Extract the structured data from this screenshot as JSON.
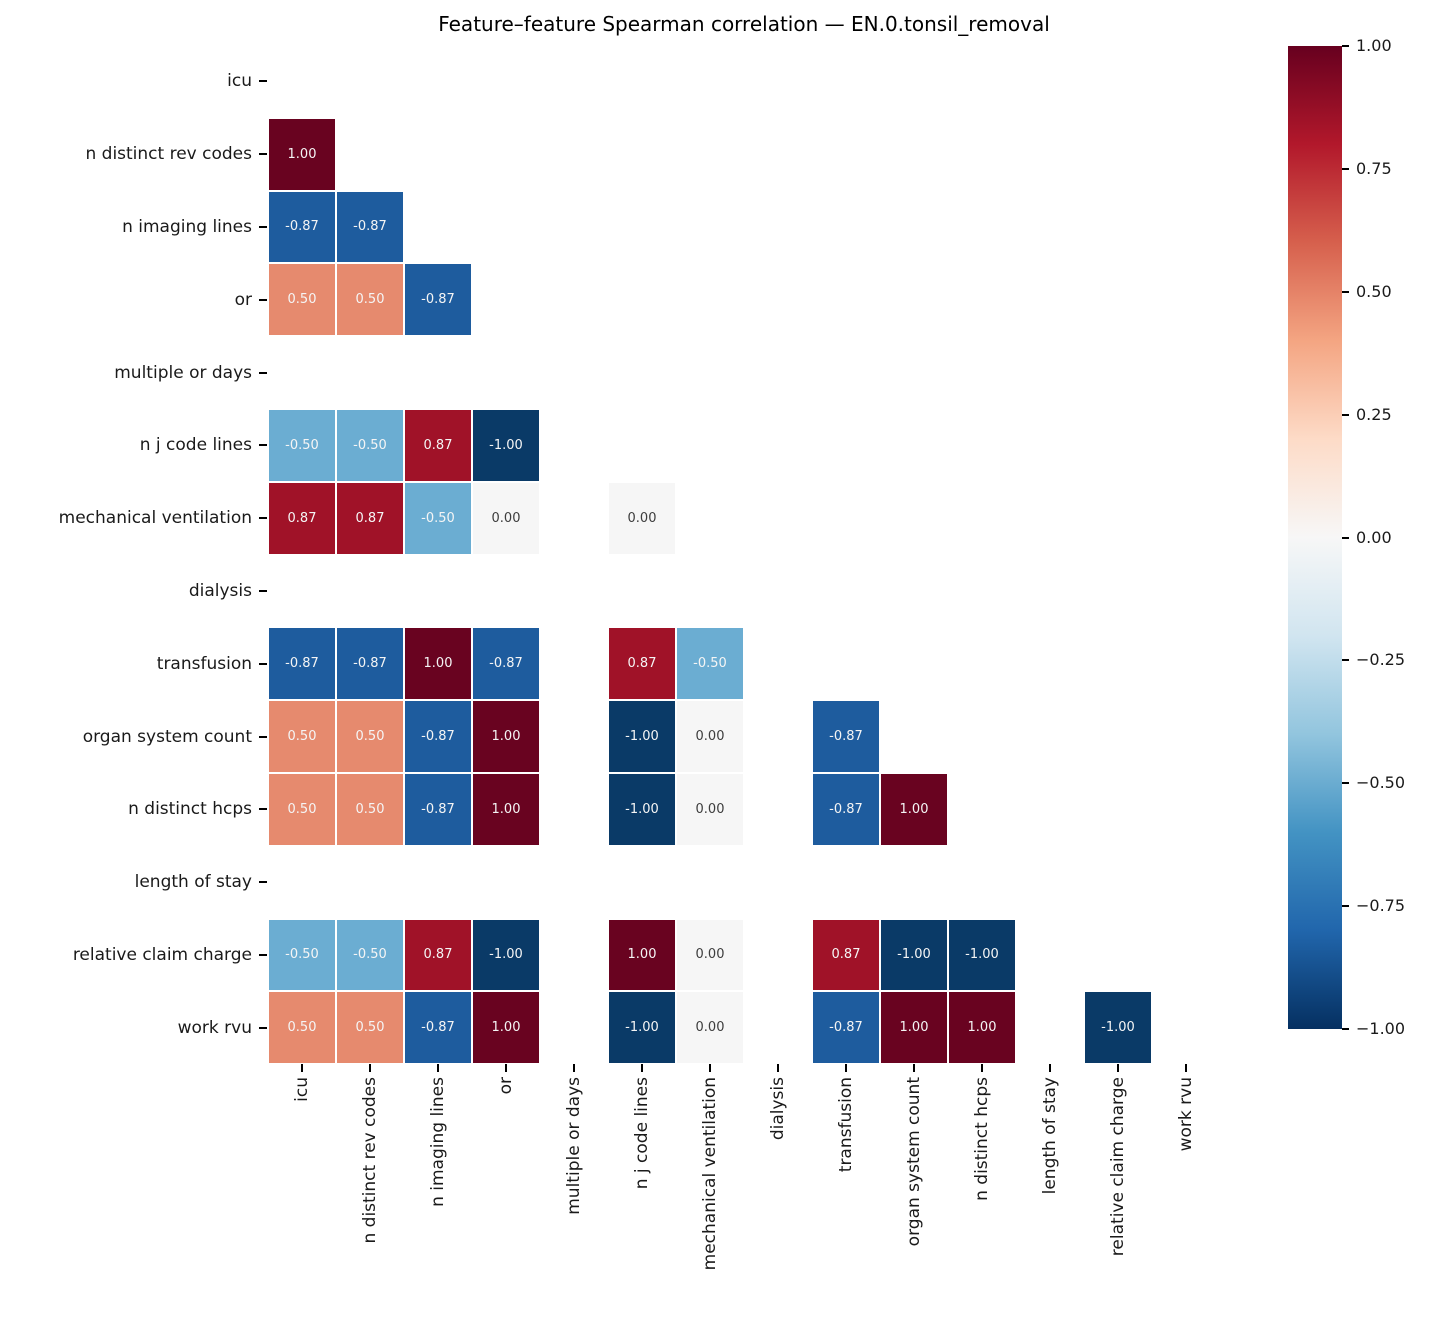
{
  "title": "Feature–feature Spearman correlation — EN.0.tonsil_removal",
  "chart_data": {
    "type": "heatmap",
    "title": "Feature–feature Spearman correlation — EN.0.tonsil_removal",
    "subtitle": "",
    "xlabel": "",
    "ylabel": "",
    "legend_position": "right-colorbar",
    "grid": "white cell borders",
    "mask": "upper triangle and diagonal hidden; constant features (multiple or days, dialysis, length of stay) all blank",
    "labels": [
      "icu",
      "n distinct rev codes",
      "n imaging lines",
      "or",
      "multiple or days",
      "n j code lines",
      "mechanical ventilation",
      "dialysis",
      "transfusion",
      "organ system count",
      "n distinct hcps",
      "length of stay",
      "relative claim charge",
      "work rvu"
    ],
    "matrix": [
      [
        null,
        null,
        null,
        null,
        null,
        null,
        null,
        null,
        null,
        null,
        null,
        null,
        null,
        null
      ],
      [
        1.0,
        null,
        null,
        null,
        null,
        null,
        null,
        null,
        null,
        null,
        null,
        null,
        null,
        null
      ],
      [
        -0.87,
        -0.87,
        null,
        null,
        null,
        null,
        null,
        null,
        null,
        null,
        null,
        null,
        null,
        null
      ],
      [
        0.5,
        0.5,
        -0.87,
        null,
        null,
        null,
        null,
        null,
        null,
        null,
        null,
        null,
        null,
        null
      ],
      [
        null,
        null,
        null,
        null,
        null,
        null,
        null,
        null,
        null,
        null,
        null,
        null,
        null,
        null
      ],
      [
        -0.5,
        -0.5,
        0.87,
        -1.0,
        null,
        null,
        null,
        null,
        null,
        null,
        null,
        null,
        null,
        null
      ],
      [
        0.87,
        0.87,
        -0.5,
        0.0,
        null,
        0.0,
        null,
        null,
        null,
        null,
        null,
        null,
        null,
        null
      ],
      [
        null,
        null,
        null,
        null,
        null,
        null,
        null,
        null,
        null,
        null,
        null,
        null,
        null,
        null
      ],
      [
        -0.87,
        -0.87,
        1.0,
        -0.87,
        null,
        0.87,
        -0.5,
        null,
        null,
        null,
        null,
        null,
        null,
        null
      ],
      [
        0.5,
        0.5,
        -0.87,
        1.0,
        null,
        -1.0,
        0.0,
        null,
        -0.87,
        null,
        null,
        null,
        null,
        null
      ],
      [
        0.5,
        0.5,
        -0.87,
        1.0,
        null,
        -1.0,
        0.0,
        null,
        -0.87,
        1.0,
        null,
        null,
        null,
        null
      ],
      [
        null,
        null,
        null,
        null,
        null,
        null,
        null,
        null,
        null,
        null,
        null,
        null,
        null,
        null
      ],
      [
        -0.5,
        -0.5,
        0.87,
        -1.0,
        null,
        1.0,
        0.0,
        null,
        0.87,
        -1.0,
        -1.0,
        null,
        null,
        null
      ],
      [
        0.5,
        0.5,
        -0.87,
        1.0,
        null,
        -1.0,
        0.0,
        null,
        -0.87,
        1.0,
        1.0,
        null,
        -1.0,
        null
      ]
    ],
    "value_colors": {
      "1.00": "#690320",
      "0.87": "#a01228",
      "0.50": "#e68a6e",
      "0.00": "#f6f6f6",
      "-0.50": "#6badd2",
      "-0.87": "#1e5c9e",
      "-1.00": "#0a3a67"
    },
    "annotation_text_light": "#f5f5f5",
    "annotation_text_dark": "#3d3d3d",
    "colorbar": {
      "vmin": -1.0,
      "vmax": 1.0,
      "ticks": [
        "1.00",
        "0.75",
        "0.50",
        "0.25",
        "0.00",
        "−0.25",
        "−0.50",
        "−0.75",
        "−1.00"
      ],
      "gradient_top_to_bottom": [
        "#67001f",
        "#b2182b",
        "#d6604d",
        "#f4a582",
        "#fddbc7",
        "#f7f7f7",
        "#d1e5f0",
        "#92c5de",
        "#4393c3",
        "#2166ac",
        "#053061"
      ]
    }
  }
}
